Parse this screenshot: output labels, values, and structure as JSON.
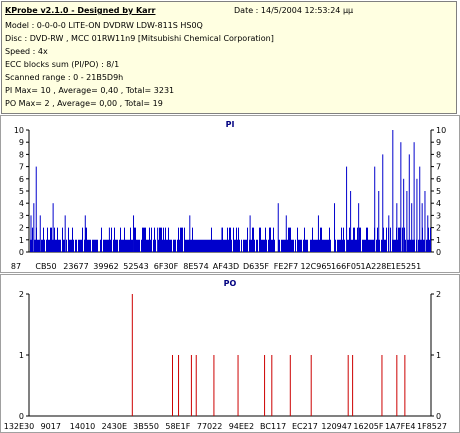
{
  "header": {
    "title": "KProbe v2.1.0 - Designed by Karr",
    "date": "Date : 14/5/2004 12:53:24 μμ",
    "lines": [
      "Model : 0-0-0-0 LITE-ON DVDRW LDW-811S   HS0Q",
      "Disc : DVD-RW , MCC 01RW11n9 [Mitsubishi Chemical Corporation]",
      "Speed : 4x",
      "ECC blocks sum (PI/PO) : 8/1",
      "Scanned range : 0 - 21B5D9h",
      "PI Max= 10 , Average= 0,40 , Total= 3231",
      "PO Max= 2 , Average= 0,00 , Total= 19"
    ]
  },
  "chart_data": [
    {
      "type": "bar",
      "title": "PI",
      "ylim": [
        0,
        10
      ],
      "yticks": [
        "0",
        "1",
        "2",
        "3",
        "4",
        "5",
        "6",
        "7",
        "8",
        "9",
        "10"
      ],
      "xtick_labels": [
        "87",
        "CB50",
        "23677",
        "39962",
        "52543",
        "6F30F",
        "8E574",
        "AF43D",
        "D635F",
        "FE2F7",
        "12C965",
        "166F05",
        "1A228E",
        "1E5251"
      ],
      "color": "#0000cc",
      "grid": false,
      "baseline_level": 1,
      "baseline_variation": [
        0,
        2
      ],
      "spikes": [
        {
          "x": 0.005,
          "v": 3
        },
        {
          "x": 0.012,
          "v": 4
        },
        {
          "x": 0.018,
          "v": 7
        },
        {
          "x": 0.028,
          "v": 3
        },
        {
          "x": 0.06,
          "v": 4
        },
        {
          "x": 0.09,
          "v": 3
        },
        {
          "x": 0.14,
          "v": 3
        },
        {
          "x": 0.2,
          "v": 2
        },
        {
          "x": 0.26,
          "v": 3
        },
        {
          "x": 0.32,
          "v": 2
        },
        {
          "x": 0.4,
          "v": 3
        },
        {
          "x": 0.48,
          "v": 2
        },
        {
          "x": 0.55,
          "v": 3
        },
        {
          "x": 0.6,
          "v": 2
        },
        {
          "x": 0.62,
          "v": 4
        },
        {
          "x": 0.64,
          "v": 3
        },
        {
          "x": 0.72,
          "v": 3
        },
        {
          "x": 0.76,
          "v": 4
        },
        {
          "x": 0.79,
          "v": 7
        },
        {
          "x": 0.8,
          "v": 5
        },
        {
          "x": 0.82,
          "v": 4
        },
        {
          "x": 0.86,
          "v": 7
        },
        {
          "x": 0.87,
          "v": 5
        },
        {
          "x": 0.88,
          "v": 8
        },
        {
          "x": 0.895,
          "v": 3
        },
        {
          "x": 0.905,
          "v": 10
        },
        {
          "x": 0.915,
          "v": 4
        },
        {
          "x": 0.925,
          "v": 9
        },
        {
          "x": 0.932,
          "v": 6
        },
        {
          "x": 0.94,
          "v": 5
        },
        {
          "x": 0.946,
          "v": 8
        },
        {
          "x": 0.952,
          "v": 4
        },
        {
          "x": 0.958,
          "v": 9
        },
        {
          "x": 0.965,
          "v": 6
        },
        {
          "x": 0.972,
          "v": 7
        },
        {
          "x": 0.978,
          "v": 4
        },
        {
          "x": 0.985,
          "v": 5
        },
        {
          "x": 0.992,
          "v": 3
        }
      ]
    },
    {
      "type": "bar",
      "title": "PO",
      "ylim": [
        0,
        2
      ],
      "yticks": [
        "0",
        "1",
        "2"
      ],
      "xtick_labels": [
        "132E30",
        "9017",
        "14010",
        "2430E",
        "3B550",
        "58E1F",
        "77022",
        "94EE2",
        "BC117",
        "EC217",
        "120947",
        "16205F",
        "1A7FE4",
        "1F8527"
      ],
      "color": "#cc0000",
      "grid": false,
      "spikes": [
        {
          "x": 0.257,
          "v": 2
        },
        {
          "x": 0.357,
          "v": 1
        },
        {
          "x": 0.372,
          "v": 1
        },
        {
          "x": 0.404,
          "v": 1
        },
        {
          "x": 0.416,
          "v": 1
        },
        {
          "x": 0.46,
          "v": 1
        },
        {
          "x": 0.52,
          "v": 1
        },
        {
          "x": 0.586,
          "v": 1
        },
        {
          "x": 0.604,
          "v": 1
        },
        {
          "x": 0.65,
          "v": 1
        },
        {
          "x": 0.702,
          "v": 1
        },
        {
          "x": 0.794,
          "v": 1
        },
        {
          "x": 0.805,
          "v": 1
        },
        {
          "x": 0.878,
          "v": 1
        },
        {
          "x": 0.915,
          "v": 1
        },
        {
          "x": 0.935,
          "v": 1
        }
      ]
    }
  ]
}
